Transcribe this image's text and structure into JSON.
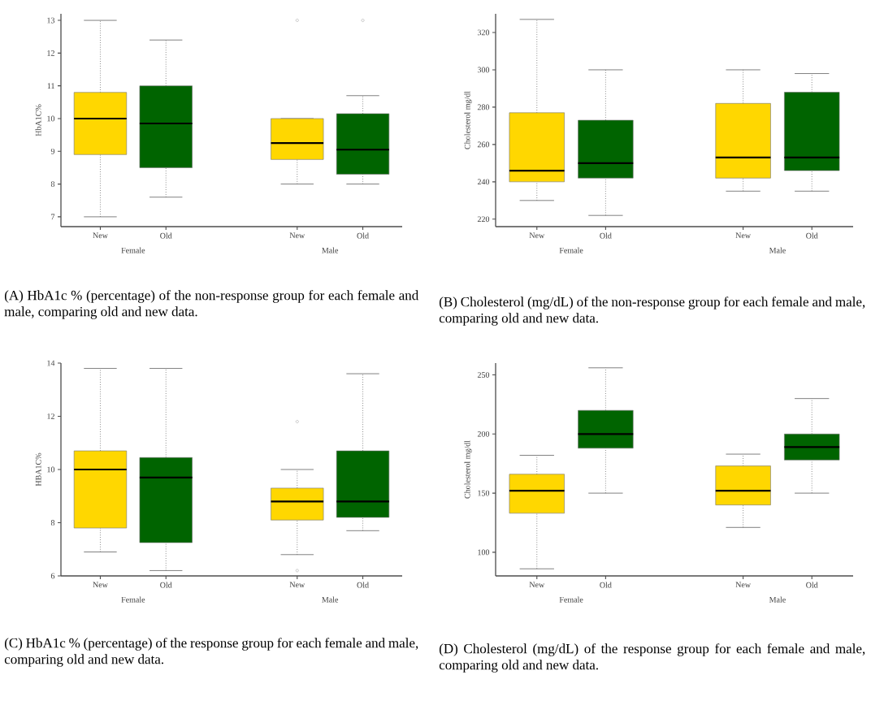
{
  "chart_data": [
    {
      "type": "box",
      "title": "(A) HbA1c % (percentage) of the non-response group for each female and male, comparing old and new data.",
      "ylabel": "HbA1C%",
      "categories": [
        "New",
        "Old",
        "New",
        "Old"
      ],
      "annotations": [
        "Female",
        "Male"
      ],
      "colors": [
        "#ffd700",
        "#006400",
        "#ffd700",
        "#006400"
      ],
      "ylim": [
        6.7,
        13.2
      ],
      "yticks": [
        7,
        8,
        9,
        10,
        11,
        12,
        13
      ],
      "boxes": [
        {
          "low": 7.0,
          "q1": 8.9,
          "median": 10.0,
          "q3": 10.8,
          "high": 13.0
        },
        {
          "low": 7.6,
          "q1": 8.5,
          "median": 9.85,
          "q3": 11.0,
          "high": 12.4
        },
        {
          "low": 8.0,
          "q1": 8.75,
          "median": 9.25,
          "q3": 10.0,
          "high": 10.0,
          "outliers": [
            13.0
          ]
        },
        {
          "low": 8.0,
          "q1": 8.3,
          "median": 9.05,
          "q3": 10.15,
          "high": 10.7,
          "outliers": [
            13.0
          ]
        }
      ]
    },
    {
      "type": "box",
      "title": "(B) Cholesterol (mg/dL) of the non-response group for each female and male, comparing old and new data.",
      "ylabel": "Cholesterol mg/dl",
      "categories": [
        "New",
        "Old",
        "New",
        "Old"
      ],
      "annotations": [
        "Female",
        "Male"
      ],
      "colors": [
        "#ffd700",
        "#006400",
        "#ffd700",
        "#006400"
      ],
      "ylim": [
        216,
        330
      ],
      "yticks": [
        220,
        240,
        260,
        280,
        300,
        320
      ],
      "boxes": [
        {
          "low": 230,
          "q1": 240,
          "median": 246,
          "q3": 277,
          "high": 327
        },
        {
          "low": 222,
          "q1": 242,
          "median": 250,
          "q3": 273,
          "high": 300
        },
        {
          "low": 235,
          "q1": 242,
          "median": 253,
          "q3": 282,
          "high": 300
        },
        {
          "low": 235,
          "q1": 246,
          "median": 253,
          "q3": 288,
          "high": 298
        }
      ]
    },
    {
      "type": "box",
      "title": "(C) HbA1c % (percentage) of the response group for each female and male, comparing old and new data.",
      "ylabel": "HBA1C%",
      "categories": [
        "New",
        "Old",
        "New",
        "Old"
      ],
      "annotations": [
        "Female",
        "Male"
      ],
      "colors": [
        "#ffd700",
        "#006400",
        "#ffd700",
        "#006400"
      ],
      "ylim": [
        6,
        14
      ],
      "yticks": [
        6,
        8,
        10,
        12,
        14
      ],
      "boxes": [
        {
          "low": 6.9,
          "q1": 7.8,
          "median": 10.0,
          "q3": 10.7,
          "high": 13.8
        },
        {
          "low": 6.2,
          "q1": 7.25,
          "median": 9.7,
          "q3": 10.45,
          "high": 13.8
        },
        {
          "low": 6.8,
          "q1": 8.1,
          "median": 8.8,
          "q3": 9.3,
          "high": 10.0,
          "outliers": [
            11.8,
            6.2
          ]
        },
        {
          "low": 7.7,
          "q1": 8.2,
          "median": 8.8,
          "q3": 10.7,
          "high": 13.6
        }
      ]
    },
    {
      "type": "box",
      "title": "(D) Cholesterol (mg/dL) of the response group for each female and male, comparing old and new data.",
      "ylabel": "Cholesterol mg/dl",
      "categories": [
        "New",
        "Old",
        "New",
        "Old"
      ],
      "annotations": [
        "Female",
        "Male"
      ],
      "colors": [
        "#ffd700",
        "#006400",
        "#ffd700",
        "#006400"
      ],
      "ylim": [
        80,
        260
      ],
      "yticks": [
        100,
        150,
        200,
        250
      ],
      "boxes": [
        {
          "low": 86,
          "q1": 133,
          "median": 152,
          "q3": 166,
          "high": 182
        },
        {
          "low": 150,
          "q1": 188,
          "median": 200,
          "q3": 220,
          "high": 256
        },
        {
          "low": 121,
          "q1": 140,
          "median": 152,
          "q3": 173,
          "high": 183
        },
        {
          "low": 150,
          "q1": 178,
          "median": 189,
          "q3": 200,
          "high": 230
        }
      ]
    }
  ]
}
